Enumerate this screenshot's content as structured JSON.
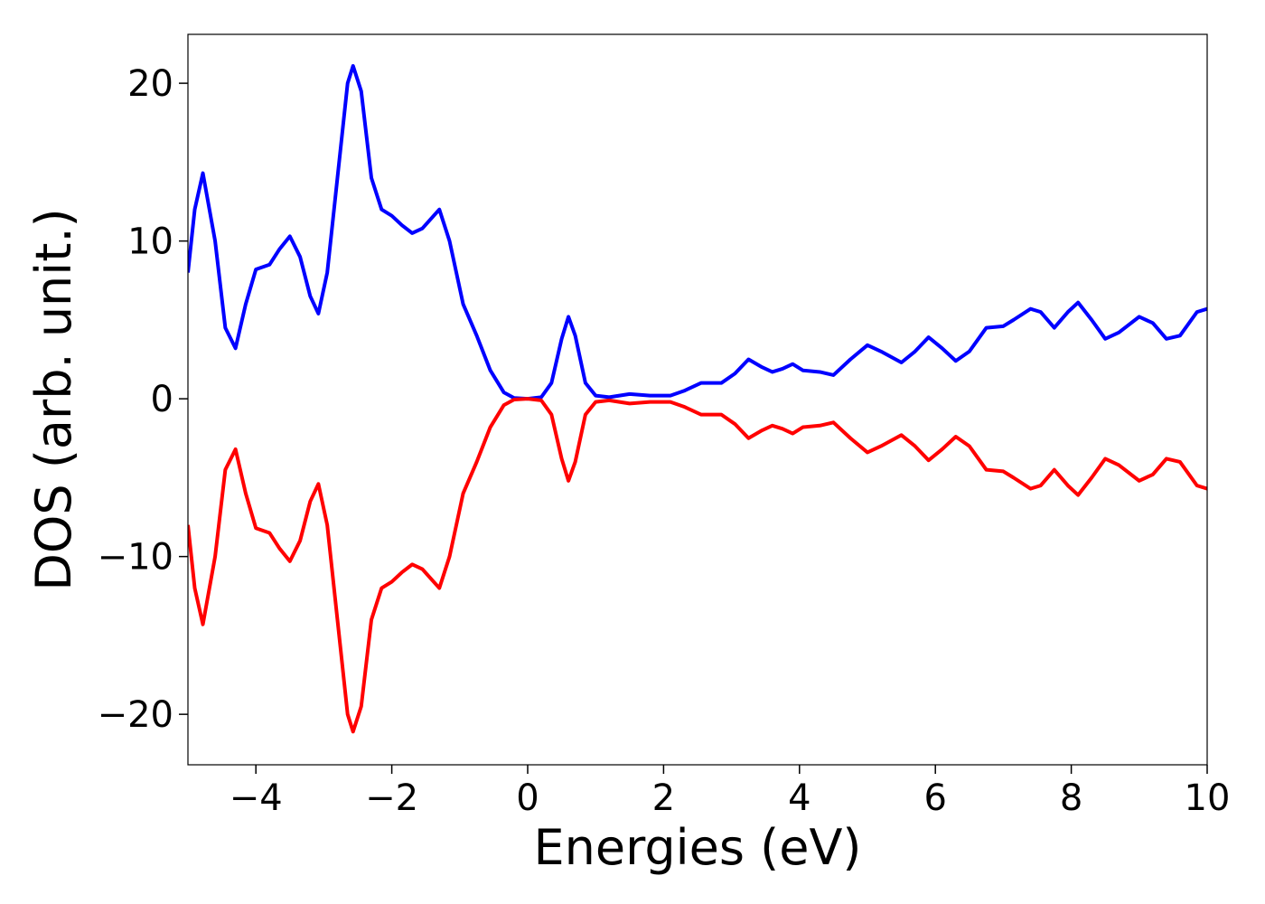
{
  "chart_data": {
    "type": "line",
    "xlabel": "Energies (eV)",
    "ylabel": "DOS (arb. unit.)",
    "x": [
      -5.0,
      -4.9,
      -4.78,
      -4.6,
      -4.45,
      -4.3,
      -4.15,
      -4.0,
      -3.8,
      -3.65,
      -3.5,
      -3.35,
      -3.2,
      -3.08,
      -2.95,
      -2.8,
      -2.65,
      -2.57,
      -2.45,
      -2.3,
      -2.15,
      -2.0,
      -1.85,
      -1.7,
      -1.55,
      -1.3,
      -1.15,
      -0.95,
      -0.75,
      -0.55,
      -0.35,
      -0.2,
      0.0,
      0.2,
      0.35,
      0.5,
      0.6,
      0.7,
      0.85,
      1.0,
      1.2,
      1.5,
      1.8,
      2.1,
      2.3,
      2.55,
      2.85,
      3.05,
      3.25,
      3.45,
      3.6,
      3.75,
      3.9,
      4.05,
      4.3,
      4.5,
      4.75,
      5.0,
      5.2,
      5.5,
      5.7,
      5.9,
      6.1,
      6.3,
      6.5,
      6.75,
      7.0,
      7.15,
      7.4,
      7.55,
      7.75,
      7.95,
      8.1,
      8.3,
      8.5,
      8.7,
      9.0,
      9.2,
      9.4,
      9.6,
      9.85,
      10.0
    ],
    "series": [
      {
        "color": "#0000ff",
        "values": [
          8,
          12,
          14.3,
          10,
          4.5,
          3.2,
          6,
          8.2,
          8.5,
          9.5,
          10.3,
          9,
          6.5,
          5.4,
          8,
          14,
          20,
          21.1,
          19.5,
          14,
          12,
          11.6,
          11,
          10.5,
          10.8,
          12,
          10,
          6,
          4,
          1.8,
          0.4,
          0.05,
          0,
          0.1,
          1,
          3.8,
          5.2,
          4,
          1,
          0.2,
          0.1,
          0.3,
          0.2,
          0.2,
          0.5,
          1.0,
          1.0,
          1.6,
          2.5,
          2.0,
          1.7,
          1.9,
          2.2,
          1.8,
          1.7,
          1.5,
          2.5,
          3.4,
          3.0,
          2.3,
          3.0,
          3.9,
          3.2,
          2.4,
          3.0,
          4.5,
          4.6,
          5.0,
          5.7,
          5.5,
          4.5,
          5.5,
          6.1,
          5.0,
          3.8,
          4.2,
          5.2,
          4.8,
          3.8,
          4.0,
          5.5,
          5.7
        ]
      },
      {
        "color": "#ff0000",
        "values": [
          -8,
          -12,
          -14.3,
          -10,
          -4.5,
          -3.2,
          -6,
          -8.2,
          -8.5,
          -9.5,
          -10.3,
          -9,
          -6.5,
          -5.4,
          -8,
          -14,
          -20,
          -21.1,
          -19.5,
          -14,
          -12,
          -11.6,
          -11,
          -10.5,
          -10.8,
          -12,
          -10,
          -6,
          -4,
          -1.8,
          -0.4,
          -0.05,
          0,
          -0.1,
          -1,
          -3.8,
          -5.2,
          -4,
          -1,
          -0.2,
          -0.1,
          -0.3,
          -0.2,
          -0.2,
          -0.5,
          -1.0,
          -1.0,
          -1.6,
          -2.5,
          -2.0,
          -1.7,
          -1.9,
          -2.2,
          -1.8,
          -1.7,
          -1.5,
          -2.5,
          -3.4,
          -3.0,
          -2.3,
          -3.0,
          -3.9,
          -3.2,
          -2.4,
          -3.0,
          -4.5,
          -4.6,
          -5.0,
          -5.7,
          -5.5,
          -4.5,
          -5.5,
          -6.1,
          -5.0,
          -3.8,
          -4.2,
          -5.2,
          -4.8,
          -3.8,
          -4.0,
          -5.5,
          -5.7
        ]
      }
    ],
    "xlim": [
      -5,
      10
    ],
    "xticks": [
      {
        "value": -4,
        "label": "−4"
      },
      {
        "value": -2,
        "label": "−2"
      },
      0,
      2,
      4,
      6,
      8,
      10
    ],
    "ylim": [
      -23.2,
      23.1
    ],
    "yticks": [
      {
        "value": -20,
        "label": "−20"
      },
      {
        "value": -10,
        "label": "−10"
      },
      0,
      10,
      20
    ],
    "grid": false
  }
}
